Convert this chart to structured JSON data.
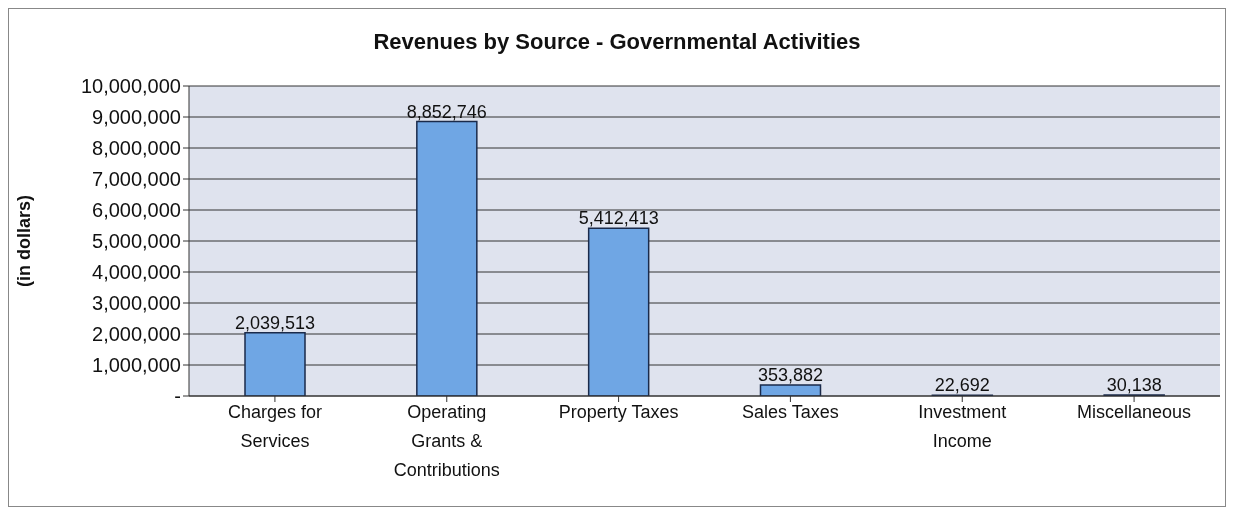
{
  "chart_data": {
    "type": "bar",
    "title": "Revenues by Source - Governmental Activities",
    "ylabel": "(in dollars)",
    "categories": [
      "Charges for Services",
      "Operating Grants & Contributions",
      "Property Taxes",
      "Sales Taxes",
      "Investment Income",
      "Miscellaneous"
    ],
    "values": [
      2039513,
      8852746,
      5412413,
      353882,
      22692,
      30138
    ],
    "color": "#6fa6e4",
    "ylim": [
      0,
      10000000
    ],
    "yticks": [
      {
        "value": 0,
        "label": "-"
      },
      {
        "value": 1000000,
        "label": "1,000,000"
      },
      {
        "value": 2000000,
        "label": "2,000,000"
      },
      {
        "value": 3000000,
        "label": "3,000,000"
      },
      {
        "value": 4000000,
        "label": "4,000,000"
      },
      {
        "value": 5000000,
        "label": "5,000,000"
      },
      {
        "value": 6000000,
        "label": "6,000,000"
      },
      {
        "value": 7000000,
        "label": "7,000,000"
      },
      {
        "value": 8000000,
        "label": "8,000,000"
      },
      {
        "value": 9000000,
        "label": "9,000,000"
      },
      {
        "value": 10000000,
        "label": "10,000,000"
      }
    ],
    "value_labels": [
      "2,039,513",
      "8,852,746",
      "5,412,413",
      "353,882",
      "22,692",
      "30,138"
    ],
    "grid": "y"
  }
}
